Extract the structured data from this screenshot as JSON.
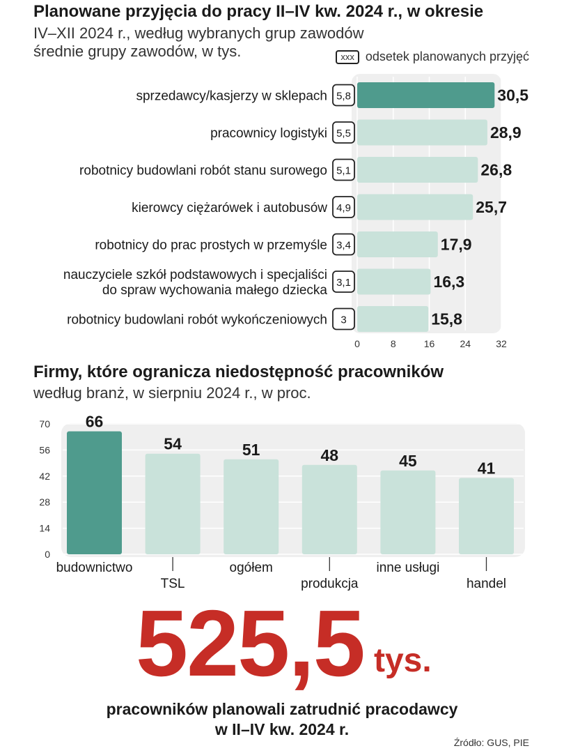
{
  "colors": {
    "highlight": "#4f9b8d",
    "bar": "#c9e2da",
    "panel": "#efefef",
    "accent_red": "#c62d26"
  },
  "chart1": {
    "title": "Planowane przyjęcia do pracy II–IV kw. 2024 r., w okresie",
    "subtitle_1": "IV–XII 2024 r., według wybranych grup zawodów",
    "subtitle_2": "średnie grupy zawodów, w tys.",
    "legend_box": "xxx",
    "legend_label": "odsetek planowanych przyjęć"
  },
  "chart2": {
    "title": "Firmy, które ogranicza niedostępność pracowników",
    "subtitle": "według branż, w sierpniu 2024 r., w  proc."
  },
  "chart_data": [
    {
      "type": "bar",
      "orientation": "horizontal",
      "title": "Planowane przyjęcia do pracy II–IV kw. 2024 r., w okresie IV–XII 2024 r., według wybranych grup zawodów",
      "unit": "średnie grupy zawodów, w tys.",
      "categories": [
        "sprzedawcy/kasjerzy w sklepach",
        "pracownicy logistyki",
        "robotnicy budowlani robót stanu surowego",
        "kierowcy ciężarówek i autobusów",
        "robotnicy do prac prostych w przemyśle",
        "nauczyciele szkół podstawowych i specjaliści\ndo spraw wychowania małego dziecka",
        "robotnicy budowlani robót wykończeniowych"
      ],
      "values": [
        30.5,
        28.9,
        26.8,
        25.7,
        17.9,
        16.3,
        15.8
      ],
      "value_labels": [
        "30,5",
        "28,9",
        "26,8",
        "25,7",
        "17,9",
        "16,3",
        "15,8"
      ],
      "percent_labels": [
        "5,8",
        "5,5",
        "5,1",
        "4,9",
        "3,4",
        "3,1",
        "3"
      ],
      "highlight_index": 0,
      "xlim": [
        0,
        32
      ],
      "xticks": [
        0,
        8,
        16,
        24,
        32
      ],
      "xtick_labels": [
        "0",
        "8",
        "16",
        "24",
        "32"
      ]
    },
    {
      "type": "bar",
      "orientation": "vertical",
      "title": "Firmy, które ogranicza niedostępność pracowników",
      "subtitle": "według branż, w sierpniu 2024 r., w  proc.",
      "categories": [
        "budownictwo",
        "TSL",
        "ogółem",
        "produkcja",
        "inne usługi",
        "handel"
      ],
      "values": [
        66,
        54,
        51,
        48,
        45,
        41
      ],
      "value_labels": [
        "66",
        "54",
        "51",
        "48",
        "45",
        "41"
      ],
      "highlight_index": 0,
      "ylim": [
        0,
        70
      ],
      "yticks": [
        0,
        14,
        28,
        42,
        56,
        70
      ],
      "ytick_labels": [
        "0",
        "14",
        "28",
        "42",
        "56",
        "70"
      ]
    }
  ],
  "summary": {
    "number": "525,5",
    "unit": "tys.",
    "caption_1": "pracowników planowali zatrudnić pracodawcy",
    "caption_2": "w II–IV kw. 2024 r.",
    "source": "Źródło: GUS, PIE"
  }
}
